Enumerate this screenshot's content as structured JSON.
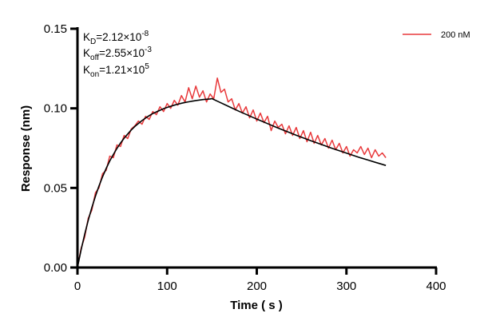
{
  "chart_data": {
    "type": "line",
    "xlabel": "Time ( s )",
    "ylabel": "Response (nm)",
    "xlim": [
      0,
      400
    ],
    "ylim": [
      0,
      0.15
    ],
    "xticks": [
      "0",
      "100",
      "200",
      "300",
      "400"
    ],
    "yticks": [
      "0.00",
      "0.05",
      "0.10",
      "0.15"
    ],
    "grid": false,
    "legend_position": "top-right",
    "annotations": {
      "kd": {
        "base": "K",
        "sub": "D",
        "value": "=2.12×10",
        "exp": "-8"
      },
      "koff": {
        "base": "K",
        "sub": "off",
        "value": "=2.55×10",
        "exp": "-3"
      },
      "kon": {
        "base": "K",
        "sub": "on",
        "value": "=1.21×10",
        "exp": "5"
      }
    },
    "series": [
      {
        "name": "200 nM",
        "color": "#e8393b",
        "x": [
          0,
          4,
          8,
          12,
          16,
          20,
          24,
          28,
          32,
          36,
          40,
          44,
          48,
          52,
          56,
          60,
          64,
          68,
          72,
          76,
          80,
          84,
          88,
          92,
          96,
          100,
          104,
          108,
          112,
          116,
          120,
          124,
          128,
          132,
          136,
          140,
          144,
          148,
          152,
          156,
          160,
          164,
          168,
          172,
          176,
          180,
          184,
          188,
          192,
          196,
          200,
          204,
          208,
          212,
          216,
          220,
          224,
          228,
          232,
          236,
          240,
          244,
          248,
          252,
          256,
          260,
          264,
          268,
          272,
          276,
          280,
          284,
          288,
          292,
          296,
          300,
          304,
          308,
          312,
          316,
          320,
          324,
          328,
          332,
          336,
          340,
          344
        ],
        "y": [
          0.0,
          0.012,
          0.019,
          0.031,
          0.036,
          0.047,
          0.05,
          0.059,
          0.061,
          0.07,
          0.069,
          0.077,
          0.076,
          0.083,
          0.081,
          0.087,
          0.089,
          0.092,
          0.09,
          0.095,
          0.093,
          0.098,
          0.096,
          0.101,
          0.098,
          0.103,
          0.1,
          0.105,
          0.102,
          0.108,
          0.104,
          0.113,
          0.106,
          0.114,
          0.107,
          0.111,
          0.104,
          0.109,
          0.106,
          0.119,
          0.11,
          0.112,
          0.104,
          0.106,
          0.099,
          0.103,
          0.097,
          0.101,
          0.094,
          0.099,
          0.092,
          0.097,
          0.091,
          0.095,
          0.086,
          0.092,
          0.088,
          0.09,
          0.084,
          0.089,
          0.083,
          0.088,
          0.081,
          0.086,
          0.079,
          0.085,
          0.078,
          0.083,
          0.077,
          0.081,
          0.075,
          0.08,
          0.074,
          0.078,
          0.072,
          0.076,
          0.07,
          0.074,
          0.072,
          0.076,
          0.071,
          0.075,
          0.069,
          0.074,
          0.07,
          0.072,
          0.069
        ]
      },
      {
        "color": "#000000",
        "x": [
          0,
          4,
          8,
          12,
          16,
          20,
          24,
          28,
          32,
          36,
          40,
          44,
          48,
          52,
          56,
          60,
          64,
          68,
          72,
          76,
          80,
          84,
          88,
          92,
          96,
          100,
          104,
          108,
          112,
          116,
          120,
          124,
          128,
          132,
          136,
          140,
          144,
          148,
          150,
          156,
          164,
          172,
          180,
          188,
          196,
          204,
          212,
          220,
          228,
          236,
          244,
          252,
          260,
          268,
          276,
          284,
          292,
          300,
          308,
          316,
          324,
          332,
          340,
          344
        ],
        "y": [
          0,
          0.011,
          0.0208,
          0.0297,
          0.0377,
          0.0448,
          0.0512,
          0.057,
          0.0622,
          0.0669,
          0.071,
          0.0748,
          0.0782,
          0.0812,
          0.0839,
          0.0864,
          0.0886,
          0.0905,
          0.0923,
          0.0939,
          0.0954,
          0.0967,
          0.0978,
          0.0988,
          0.0998,
          0.1006,
          0.1013,
          0.102,
          0.1026,
          0.1032,
          0.1037,
          0.1041,
          0.1045,
          0.1049,
          0.1052,
          0.1055,
          0.1057,
          0.1059,
          0.1061,
          0.1045,
          0.1024,
          0.1003,
          0.0982,
          0.0962,
          0.0942,
          0.0923,
          0.0904,
          0.0885,
          0.0867,
          0.0849,
          0.0831,
          0.0814,
          0.0797,
          0.0781,
          0.0765,
          0.0749,
          0.0734,
          0.0719,
          0.0704,
          0.0689,
          0.0675,
          0.0661,
          0.0648,
          0.0641
        ]
      }
    ]
  }
}
